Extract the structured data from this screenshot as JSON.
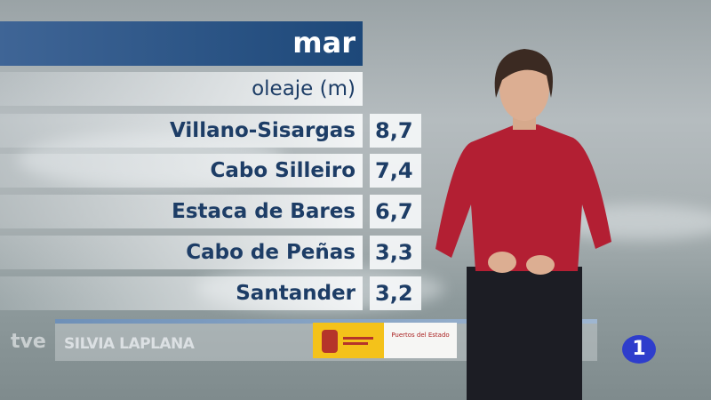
{
  "header": {
    "title": "mar"
  },
  "subtitle": "oleaje (m)",
  "rows": [
    {
      "place": "Villano-Sisargas",
      "value": "8,7"
    },
    {
      "place": "Cabo Silleiro",
      "value": "7,4"
    },
    {
      "place": "Estaca de Bares",
      "value": "6,7"
    },
    {
      "place": "Cabo de Peñas",
      "value": "3,3"
    },
    {
      "place": "Santander",
      "value": "3,2"
    }
  ],
  "lower_third": {
    "channel_logo": "tve",
    "presenter": "SILVIA LAPLANA",
    "sponsor": "Puertos del Estado",
    "channel_number": "1"
  },
  "colors": {
    "header": "#1d4879",
    "text": "#1d3d66",
    "channel_badge": "#2e3dcc"
  }
}
